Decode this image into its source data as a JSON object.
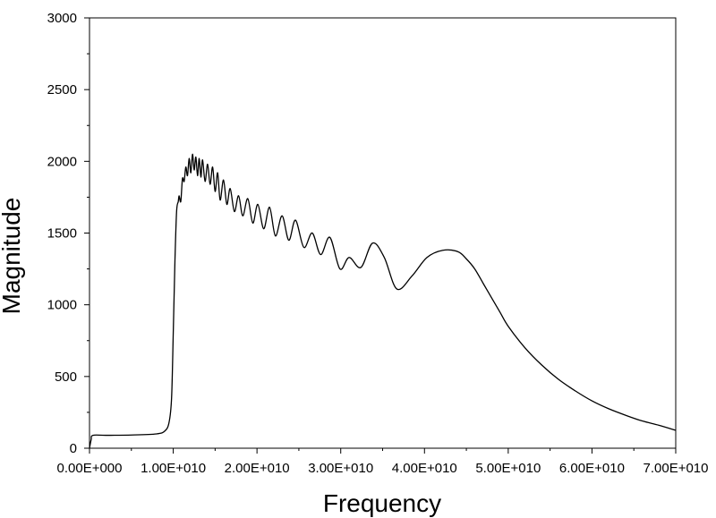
{
  "chart_data": {
    "type": "line",
    "xlabel": "Frequency",
    "ylabel": "Magnitude",
    "xlim": [
      0,
      70000000000
    ],
    "ylim": [
      0,
      3000
    ],
    "x_ticks": [
      0,
      10000000000,
      20000000000,
      30000000000,
      40000000000,
      50000000000,
      60000000000,
      70000000000
    ],
    "x_tick_labels": [
      "0.00E+000",
      "1.00E+010",
      "2.00E+010",
      "3.00E+010",
      "4.00E+010",
      "5.00E+010",
      "6.00E+010",
      "7.00E+010"
    ],
    "y_ticks": [
      0,
      500,
      1000,
      1500,
      2000,
      2500,
      3000
    ],
    "y_tick_labels": [
      "0",
      "500",
      "1000",
      "1500",
      "2000",
      "2500",
      "3000"
    ],
    "grid": false,
    "line_color": "#000000",
    "series": [
      {
        "x": [
          0,
          200000000,
          400000000,
          2000000000,
          5000000000,
          8000000000,
          9000000000,
          9500000000,
          9800000000,
          10000000000,
          10200000000,
          10400000000,
          10600000000,
          10700000000,
          10900000000,
          11100000000,
          11300000000,
          11500000000,
          11700000000,
          11900000000,
          12100000000,
          12300000000,
          12500000000,
          12700000000,
          12900000000,
          13100000000,
          13300000000,
          13500000000,
          13800000000,
          14100000000,
          14400000000,
          14700000000,
          15000000000,
          15300000000,
          15600000000,
          16000000000,
          16400000000,
          16800000000,
          17300000000,
          17800000000,
          18300000000,
          18900000000,
          19500000000,
          20100000000,
          20800000000,
          21500000000,
          22200000000,
          23000000000,
          23800000000,
          24600000000,
          25600000000,
          26600000000,
          27600000000,
          28700000000,
          29900000000,
          31000000000,
          32400000000,
          33800000000,
          35200000000,
          36700000000,
          38500000000,
          40300000000,
          42200000000,
          44000000000,
          45000000000,
          46000000000,
          47000000000,
          48000000000,
          49000000000,
          50000000000,
          52000000000,
          54000000000,
          56000000000,
          58000000000,
          60000000000,
          62000000000,
          64000000000,
          66000000000,
          68000000000,
          70000000000
        ],
        "y": [
          0,
          60,
          90,
          90,
          92,
          100,
          120,
          180,
          350,
          800,
          1300,
          1650,
          1720,
          1760,
          1720,
          1880,
          1860,
          1960,
          1900,
          2020,
          1920,
          2050,
          1940,
          2030,
          1900,
          2020,
          1890,
          2010,
          1860,
          1980,
          1840,
          1960,
          1790,
          1920,
          1730,
          1870,
          1700,
          1810,
          1650,
          1760,
          1620,
          1740,
          1570,
          1700,
          1530,
          1680,
          1480,
          1620,
          1450,
          1590,
          1400,
          1500,
          1350,
          1470,
          1250,
          1330,
          1260,
          1430,
          1330,
          1110,
          1200,
          1330,
          1380,
          1370,
          1320,
          1250,
          1150,
          1050,
          950,
          850,
          700,
          580,
          480,
          400,
          330,
          275,
          230,
          190,
          160,
          125
        ]
      }
    ]
  }
}
